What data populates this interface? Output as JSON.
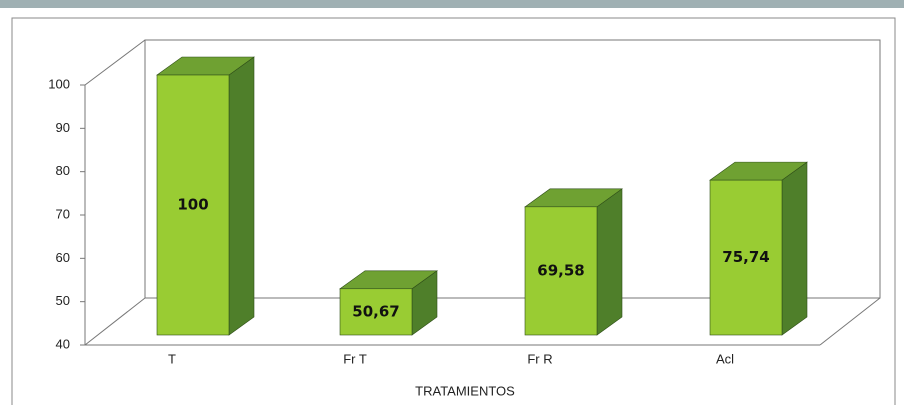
{
  "chart_data": {
    "type": "bar3d",
    "x_label": "TRATAMIENTOS",
    "categories": [
      "T",
      "Fr T",
      "Fr R",
      "Acl"
    ],
    "values": [
      100,
      50.67,
      69.58,
      75.74
    ],
    "value_labels": [
      "100",
      "50,67",
      "69,58",
      "75,74"
    ],
    "color": "#99cc33",
    "ylim": [
      40,
      100
    ],
    "yticks": [
      40,
      50,
      60,
      70,
      80,
      90,
      100
    ],
    "grid": false
  }
}
